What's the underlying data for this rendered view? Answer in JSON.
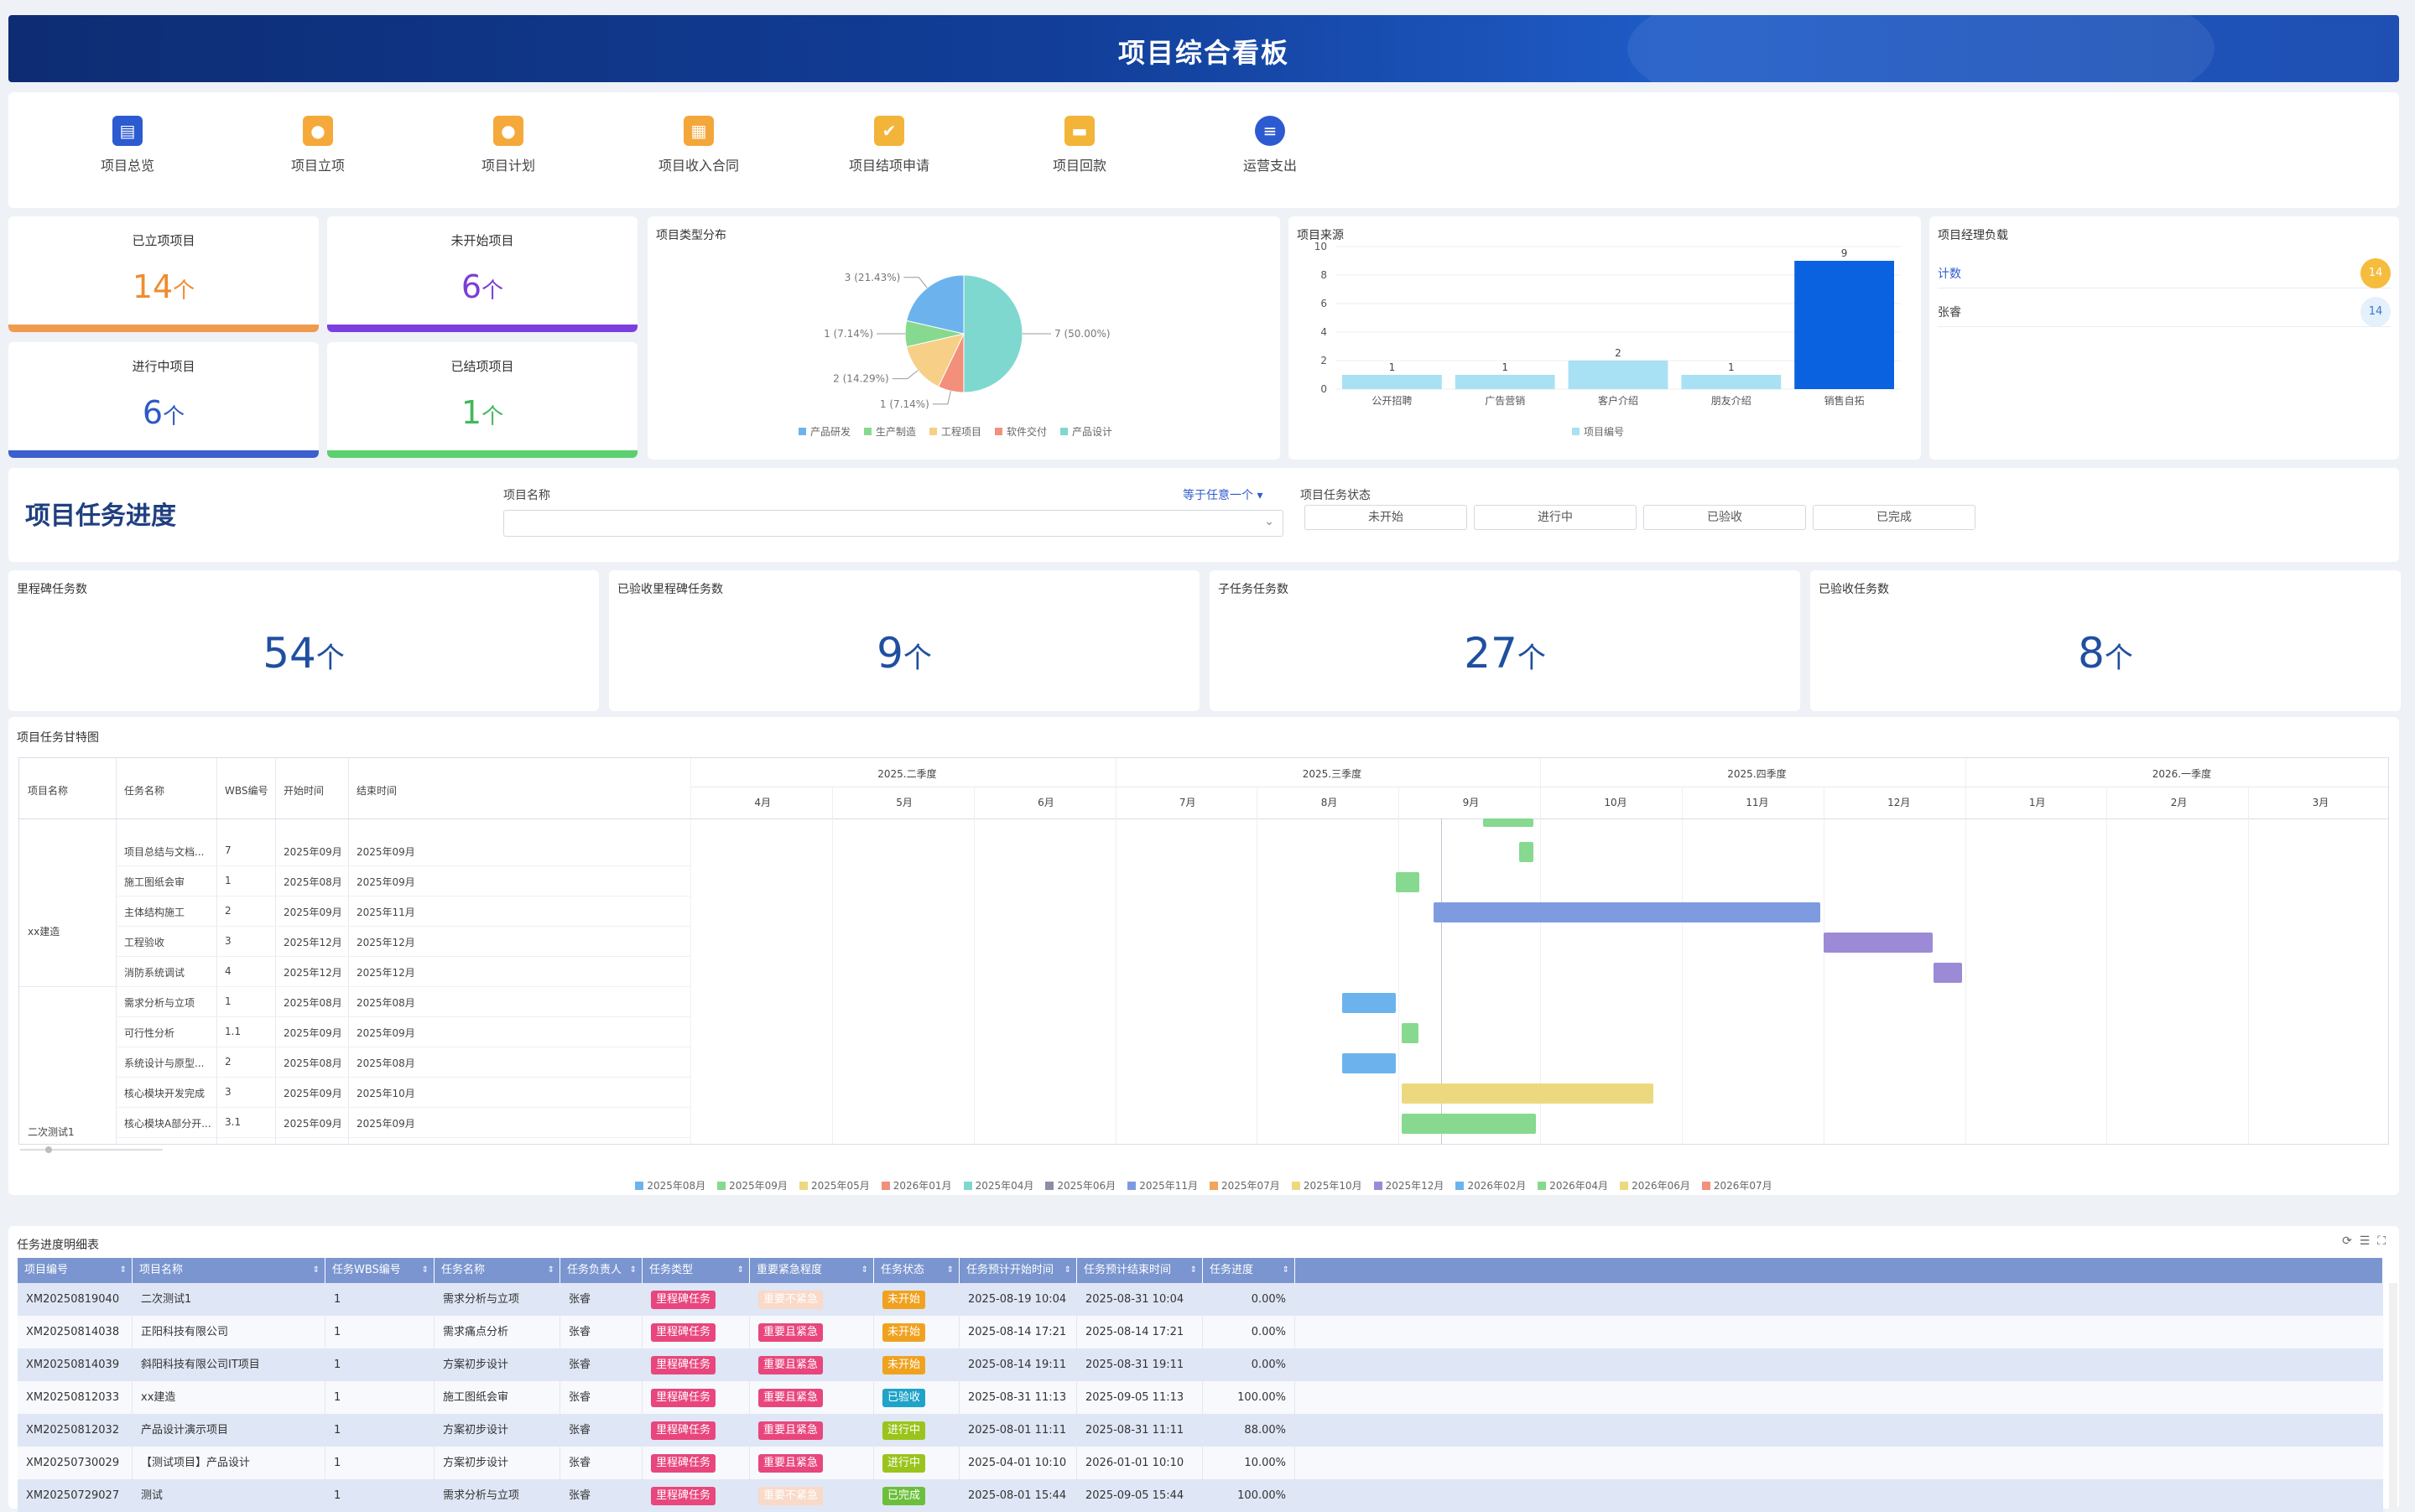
{
  "header": {
    "title": "项目综合看板"
  },
  "menu": [
    {
      "label": "项目总览",
      "icon": "doc-list-icon",
      "color": "#2c5bd1"
    },
    {
      "label": "项目立项",
      "icon": "coin-stack-icon",
      "color": "#f5a93a"
    },
    {
      "label": "项目计划",
      "icon": "coin-icon",
      "color": "#f5a93a"
    },
    {
      "label": "项目收入合同",
      "icon": "contract-icon",
      "color": "#f3a73a"
    },
    {
      "label": "项目结项申请",
      "icon": "check-doc-icon",
      "color": "#f3b43a"
    },
    {
      "label": "项目回款",
      "icon": "folder-icon",
      "color": "#f3b43a"
    },
    {
      "label": "运营支出",
      "icon": "list-circle-icon",
      "color": "#2c5bd1"
    }
  ],
  "stats": [
    {
      "label": "已立项项目",
      "value": "14",
      "unit": "个",
      "color": "#ef8c2f",
      "bar": "#ef9a4d"
    },
    {
      "label": "未开始项目",
      "value": "6",
      "unit": "个",
      "color": "#7a3fd6",
      "bar": "#7b3fe0"
    },
    {
      "label": "进行中项目",
      "value": "6",
      "unit": "个",
      "color": "#2e59c4",
      "bar": "#3b5fcc"
    },
    {
      "label": "已结项项目",
      "value": "1",
      "unit": "个",
      "color": "#43b85a",
      "bar": "#5ccf6f"
    }
  ],
  "type_chart": {
    "title": "项目类型分布",
    "chart_data": {
      "type": "pie",
      "slices": [
        {
          "name": "产品设计",
          "value": 7,
          "label": "7 (50.00%)",
          "color": "#7fd8cf"
        },
        {
          "name": "软件交付",
          "value": 1,
          "label": "1 (7.14%)",
          "color": "#f3907c"
        },
        {
          "name": "工程项目",
          "value": 2,
          "label": "2 (14.29%)",
          "color": "#f7cf86"
        },
        {
          "name": "生产制造",
          "value": 1,
          "label": "1 (7.14%)",
          "color": "#86d98f"
        },
        {
          "name": "产品研发",
          "value": 3,
          "label": "3 (21.43%)",
          "color": "#6cb3ee"
        }
      ],
      "legend": [
        "产品研发",
        "生产制造",
        "工程项目",
        "软件交付",
        "产品设计"
      ]
    }
  },
  "source_chart": {
    "title": "项目来源",
    "chart_data": {
      "type": "bar",
      "categories": [
        "公开招聘",
        "广告营销",
        "客户介绍",
        "朋友介绍",
        "销售自拓"
      ],
      "values": [
        1,
        1,
        2,
        1,
        9
      ],
      "ylim": [
        0,
        10
      ],
      "yticks": [
        0,
        2,
        4,
        6,
        8,
        10
      ],
      "series_name": "项目编号",
      "color": "#a8e1f3",
      "highlight_color": "#0a62e0"
    }
  },
  "manager_load": {
    "title": "项目经理负载",
    "rows": [
      {
        "name": "计数",
        "count": "14",
        "active": true
      },
      {
        "name": "张睿",
        "count": "14",
        "active": false
      }
    ]
  },
  "progress": {
    "title": "项目任务进度",
    "filter_label": "项目名称",
    "filter_op": "等于任意一个",
    "status_label": "项目任务状态",
    "status_buttons": [
      "未开始",
      "进行中",
      "已验收",
      "已完成"
    ]
  },
  "kpis": [
    {
      "label": "里程碑任务数",
      "value": "54",
      "unit": "个"
    },
    {
      "label": "已验收里程碑任务数",
      "value": "9",
      "unit": "个"
    },
    {
      "label": "子任务任务数",
      "value": "27",
      "unit": "个"
    },
    {
      "label": "已验收任务数",
      "value": "8",
      "unit": "个"
    }
  ],
  "gantt": {
    "title": "项目任务甘特图",
    "columns": [
      "项目名称",
      "任务名称",
      "WBS编号",
      "开始时间",
      "结束时间"
    ],
    "quarters": [
      "2025.二季度",
      "2025.三季度",
      "2025.四季度",
      "2026.一季度"
    ],
    "months": [
      "4月",
      "5月",
      "6月",
      "7月",
      "8月",
      "9月",
      "10月",
      "11月",
      "12月",
      "1月",
      "2月",
      "3月"
    ],
    "groups": [
      {
        "name": "xx建造"
      },
      {
        "name": "二次测试1"
      }
    ],
    "rows": [
      {
        "task": "项目总结与文档...",
        "wbs": "7",
        "start": "2025年09月",
        "end": "2025年09月",
        "s": 5.85,
        "e": 5.95,
        "color": "#86d98f"
      },
      {
        "task": "施工图纸会审",
        "wbs": "1",
        "start": "2025年08月",
        "end": "2025年09月",
        "s": 4.98,
        "e": 5.15,
        "color": "#86d98f"
      },
      {
        "task": "主体结构施工",
        "wbs": "2",
        "start": "2025年09月",
        "end": "2025年11月",
        "s": 5.25,
        "e": 7.98,
        "color": "#7e9be0"
      },
      {
        "task": "工程验收",
        "wbs": "3",
        "start": "2025年12月",
        "end": "2025年12月",
        "s": 8.0,
        "e": 8.77,
        "color": "#9d8ad6"
      },
      {
        "task": "消防系统调试",
        "wbs": "4",
        "start": "2025年12月",
        "end": "2025年12月",
        "s": 8.78,
        "e": 8.98,
        "color": "#9d8ad6"
      },
      {
        "task": "需求分析与立项",
        "wbs": "1",
        "start": "2025年08月",
        "end": "2025年08月",
        "s": 4.6,
        "e": 4.98,
        "color": "#6cb3ee"
      },
      {
        "task": "可行性分析",
        "wbs": "1.1",
        "start": "2025年09月",
        "end": "2025年09月",
        "s": 5.02,
        "e": 5.14,
        "color": "#86d98f"
      },
      {
        "task": "系统设计与原型...",
        "wbs": "2",
        "start": "2025年08月",
        "end": "2025年08月",
        "s": 4.6,
        "e": 4.98,
        "color": "#6cb3ee"
      },
      {
        "task": "核心模块开发完成",
        "wbs": "3",
        "start": "2025年09月",
        "end": "2025年10月",
        "s": 5.02,
        "e": 6.8,
        "color": "#ecd97f"
      },
      {
        "task": "核心模块A部分开...",
        "wbs": "3.1",
        "start": "2025年09月",
        "end": "2025年09月",
        "s": 5.02,
        "e": 5.97,
        "color": "#86d98f"
      }
    ],
    "legend": [
      {
        "label": "2025年08月",
        "color": "#6cb3ee"
      },
      {
        "label": "2025年09月",
        "color": "#86d98f"
      },
      {
        "label": "2025年05月",
        "color": "#ecd97f"
      },
      {
        "label": "2026年01月",
        "color": "#f3907c"
      },
      {
        "label": "2025年04月",
        "color": "#7fd8cf"
      },
      {
        "label": "2025年06月",
        "color": "#8d8da6"
      },
      {
        "label": "2025年11月",
        "color": "#7e9be0"
      },
      {
        "label": "2025年07月",
        "color": "#f3a35a"
      },
      {
        "label": "2025年10月",
        "color": "#ecd97f"
      },
      {
        "label": "2025年12月",
        "color": "#9d8ad6"
      },
      {
        "label": "2026年02月",
        "color": "#6cb3ee"
      },
      {
        "label": "2026年04月",
        "color": "#86d98f"
      },
      {
        "label": "2026年06月",
        "color": "#ecd97f"
      },
      {
        "label": "2026年07月",
        "color": "#f3907c"
      }
    ]
  },
  "detail": {
    "title": "任务进度明细表",
    "columns": [
      "项目编号",
      "项目名称",
      "任务WBS编号",
      "任务名称",
      "任务负责人",
      "任务类型",
      "重要紧急程度",
      "任务状态",
      "任务预计开始时间",
      "任务预计结束时间",
      "任务进度"
    ],
    "rows": [
      {
        "id": "XM20250819040",
        "name": "二次测试1",
        "wbs": "1",
        "task": "需求分析与立项",
        "owner": "张睿",
        "type": "里程碑任务",
        "urg": "重要不紧急",
        "status": "未开始",
        "start": "2025-08-19 10:04",
        "end": "2025-08-31 10:04",
        "prog": "0.00%"
      },
      {
        "id": "XM20250814038",
        "name": "正阳科技有限公司",
        "wbs": "1",
        "task": "需求痛点分析",
        "owner": "张睿",
        "type": "里程碑任务",
        "urg": "重要且紧急",
        "status": "未开始",
        "start": "2025-08-14 17:21",
        "end": "2025-08-14 17:21",
        "prog": "0.00%"
      },
      {
        "id": "XM20250814039",
        "name": "斜阳科技有限公司IT项目",
        "wbs": "1",
        "task": "方案初步设计",
        "owner": "张睿",
        "type": "里程碑任务",
        "urg": "重要且紧急",
        "status": "未开始",
        "start": "2025-08-14 19:11",
        "end": "2025-08-31 19:11",
        "prog": "0.00%"
      },
      {
        "id": "XM20250812033",
        "name": "xx建造",
        "wbs": "1",
        "task": "施工图纸会审",
        "owner": "张睿",
        "type": "里程碑任务",
        "urg": "重要且紧急",
        "status": "已验收",
        "start": "2025-08-31 11:13",
        "end": "2025-09-05 11:13",
        "prog": "100.00%"
      },
      {
        "id": "XM20250812032",
        "name": "产品设计演示项目",
        "wbs": "1",
        "task": "方案初步设计",
        "owner": "张睿",
        "type": "里程碑任务",
        "urg": "重要且紧急",
        "status": "进行中",
        "start": "2025-08-01 11:11",
        "end": "2025-08-31 11:11",
        "prog": "88.00%"
      },
      {
        "id": "XM20250730029",
        "name": "【测试项目】产品设计",
        "wbs": "1",
        "task": "方案初步设计",
        "owner": "张睿",
        "type": "里程碑任务",
        "urg": "重要且紧急",
        "status": "进行中",
        "start": "2025-04-01 10:10",
        "end": "2026-01-01 10:10",
        "prog": "10.00%"
      },
      {
        "id": "XM20250729027",
        "name": "测试",
        "wbs": "1",
        "task": "需求分析与立项",
        "owner": "张睿",
        "type": "里程碑任务",
        "urg": "重要不紧急",
        "status": "已完成",
        "start": "2025-08-01 15:44",
        "end": "2025-09-05 15:44",
        "prog": "100.00%"
      }
    ],
    "colors": {
      "type": "#e8467c",
      "urg_hi": "#e8467c",
      "urg_lo": "#f9d9c8",
      "st_未开始": "#f0a21f",
      "st_已验收": "#1fa3c8",
      "st_进行中": "#9ac41c",
      "st_已完成": "#6bbf3b"
    }
  }
}
